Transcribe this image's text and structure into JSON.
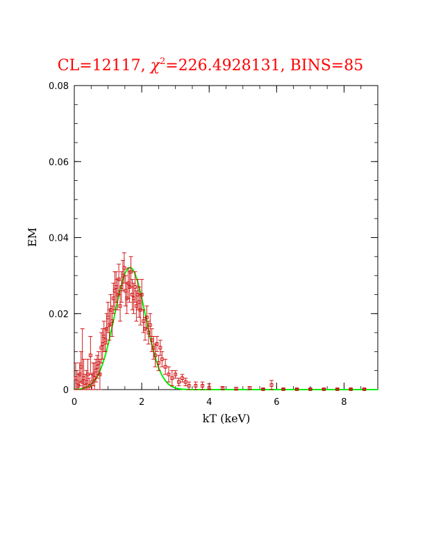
{
  "chart_data": {
    "type": "scatter",
    "title": {
      "prefix": "CL=12117, ",
      "chi": "χ",
      "chi_sup": "2",
      "suffix": "=226.4928131, BINS=85"
    },
    "xlabel": "kT (keV)",
    "ylabel": "EM",
    "xlim": [
      0,
      9
    ],
    "ylim": [
      0,
      0.08
    ],
    "x_ticks": [
      0,
      2,
      4,
      6,
      8
    ],
    "x_tick_labels": [
      "0",
      "2",
      "4",
      "6",
      "8"
    ],
    "y_ticks": [
      0,
      0.02,
      0.04,
      0.06,
      0.08
    ],
    "y_tick_labels": [
      "0",
      "0.02",
      "0.04",
      "0.06",
      "0.08"
    ],
    "x_minor_step": 0.5,
    "y_minor_step": 0.005,
    "grid": false,
    "colors": {
      "data": "#cc0000",
      "model": "#00ee00",
      "title": "#ff0000"
    },
    "series": [
      {
        "kind": "points-with-errorbars",
        "points": [
          {
            "x": 0.04,
            "y": 0.003,
            "e": 0.004
          },
          {
            "x": 0.08,
            "y": 0.002,
            "e": 0.003
          },
          {
            "x": 0.12,
            "y": 0.001,
            "e": 0.003
          },
          {
            "x": 0.16,
            "y": 0.004,
            "e": 0.003
          },
          {
            "x": 0.2,
            "y": 0.006,
            "e": 0.004
          },
          {
            "x": 0.24,
            "y": 0.002,
            "e": 0.014
          },
          {
            "x": 0.28,
            "y": 0.003,
            "e": 0.005
          },
          {
            "x": 0.32,
            "y": 0.001,
            "e": 0.003
          },
          {
            "x": 0.36,
            "y": 0.002,
            "e": 0.003
          },
          {
            "x": 0.4,
            "y": 0.004,
            "e": 0.004
          },
          {
            "x": 0.44,
            "y": 0.001,
            "e": 0.002
          },
          {
            "x": 0.48,
            "y": 0.009,
            "e": 0.005
          },
          {
            "x": 0.52,
            "y": 0.002,
            "e": 0.002
          },
          {
            "x": 0.56,
            "y": 0.004,
            "e": 0.003
          },
          {
            "x": 0.6,
            "y": 0.003,
            "e": 0.004
          },
          {
            "x": 0.64,
            "y": 0.005,
            "e": 0.003
          },
          {
            "x": 0.68,
            "y": 0.006,
            "e": 0.003
          },
          {
            "x": 0.72,
            "y": 0.007,
            "e": 0.003
          },
          {
            "x": 0.76,
            "y": 0.004,
            "e": 0.004
          },
          {
            "x": 0.8,
            "y": 0.011,
            "e": 0.004
          },
          {
            "x": 0.84,
            "y": 0.012,
            "e": 0.004
          },
          {
            "x": 0.88,
            "y": 0.014,
            "e": 0.004
          },
          {
            "x": 0.92,
            "y": 0.013,
            "e": 0.003
          },
          {
            "x": 0.96,
            "y": 0.016,
            "e": 0.004
          },
          {
            "x": 1.0,
            "y": 0.019,
            "e": 0.004
          },
          {
            "x": 1.04,
            "y": 0.017,
            "e": 0.004
          },
          {
            "x": 1.08,
            "y": 0.021,
            "e": 0.004
          },
          {
            "x": 1.12,
            "y": 0.018,
            "e": 0.004
          },
          {
            "x": 1.16,
            "y": 0.024,
            "e": 0.004
          },
          {
            "x": 1.2,
            "y": 0.026,
            "e": 0.005
          },
          {
            "x": 1.24,
            "y": 0.027,
            "e": 0.004
          },
          {
            "x": 1.28,
            "y": 0.025,
            "e": 0.004
          },
          {
            "x": 1.32,
            "y": 0.029,
            "e": 0.004
          },
          {
            "x": 1.36,
            "y": 0.022,
            "e": 0.004
          },
          {
            "x": 1.4,
            "y": 0.027,
            "e": 0.004
          },
          {
            "x": 1.44,
            "y": 0.03,
            "e": 0.004
          },
          {
            "x": 1.48,
            "y": 0.032,
            "e": 0.004
          },
          {
            "x": 1.52,
            "y": 0.026,
            "e": 0.004
          },
          {
            "x": 1.56,
            "y": 0.024,
            "e": 0.004
          },
          {
            "x": 1.6,
            "y": 0.028,
            "e": 0.004
          },
          {
            "x": 1.64,
            "y": 0.027,
            "e": 0.004
          },
          {
            "x": 1.68,
            "y": 0.031,
            "e": 0.004
          },
          {
            "x": 1.72,
            "y": 0.025,
            "e": 0.004
          },
          {
            "x": 1.76,
            "y": 0.024,
            "e": 0.004
          },
          {
            "x": 1.8,
            "y": 0.027,
            "e": 0.004
          },
          {
            "x": 1.84,
            "y": 0.022,
            "e": 0.004
          },
          {
            "x": 1.88,
            "y": 0.025,
            "e": 0.004
          },
          {
            "x": 1.92,
            "y": 0.023,
            "e": 0.004
          },
          {
            "x": 1.96,
            "y": 0.021,
            "e": 0.004
          },
          {
            "x": 2.0,
            "y": 0.025,
            "e": 0.004
          },
          {
            "x": 2.05,
            "y": 0.018,
            "e": 0.003
          },
          {
            "x": 2.1,
            "y": 0.016,
            "e": 0.003
          },
          {
            "x": 2.15,
            "y": 0.019,
            "e": 0.003
          },
          {
            "x": 2.2,
            "y": 0.015,
            "e": 0.003
          },
          {
            "x": 2.25,
            "y": 0.017,
            "e": 0.003
          },
          {
            "x": 2.3,
            "y": 0.013,
            "e": 0.003
          },
          {
            "x": 2.35,
            "y": 0.011,
            "e": 0.003
          },
          {
            "x": 2.4,
            "y": 0.009,
            "e": 0.003
          },
          {
            "x": 2.45,
            "y": 0.012,
            "e": 0.002
          },
          {
            "x": 2.5,
            "y": 0.007,
            "e": 0.002
          },
          {
            "x": 2.55,
            "y": 0.011,
            "e": 0.002
          },
          {
            "x": 2.6,
            "y": 0.008,
            "e": 0.002
          },
          {
            "x": 2.7,
            "y": 0.006,
            "e": 0.002
          },
          {
            "x": 2.8,
            "y": 0.004,
            "e": 0.002
          },
          {
            "x": 2.9,
            "y": 0.003,
            "e": 0.002
          },
          {
            "x": 3.0,
            "y": 0.004,
            "e": 0.001
          },
          {
            "x": 3.1,
            "y": 0.002,
            "e": 0.001
          },
          {
            "x": 3.2,
            "y": 0.003,
            "e": 0.001
          },
          {
            "x": 3.3,
            "y": 0.002,
            "e": 0.001
          },
          {
            "x": 3.4,
            "y": 0.001,
            "e": 0.001
          },
          {
            "x": 3.6,
            "y": 0.001,
            "e": 0.001
          },
          {
            "x": 3.8,
            "y": 0.001,
            "e": 0.001
          },
          {
            "x": 4.0,
            "y": 0.0005,
            "e": 0.001
          },
          {
            "x": 4.4,
            "y": 0.0003,
            "e": 0.0005
          },
          {
            "x": 4.8,
            "y": 0.0002,
            "e": 0.0004
          },
          {
            "x": 5.2,
            "y": 0.0004,
            "e": 0.0004
          },
          {
            "x": 5.6,
            "y": 0.0001,
            "e": 0.0002
          },
          {
            "x": 5.85,
            "y": 0.0012,
            "e": 0.0012
          },
          {
            "x": 6.2,
            "y": 0.0001,
            "e": 0.0002
          },
          {
            "x": 6.6,
            "y": 0.0001,
            "e": 0.0002
          },
          {
            "x": 7.0,
            "y": 0.0001,
            "e": 0.0002
          },
          {
            "x": 7.4,
            "y": 0.0001,
            "e": 0.0002
          },
          {
            "x": 7.8,
            "y": 0.0001,
            "e": 0.0002
          },
          {
            "x": 8.2,
            "y": 0.0001,
            "e": 0.0002
          },
          {
            "x": 8.6,
            "y": 0.0001,
            "e": 0.0002
          }
        ]
      },
      {
        "kind": "model-curve",
        "shape": "gaussian",
        "amplitude": 0.0321,
        "center": 1.65,
        "sigma": 0.46,
        "x_range": [
          0,
          9
        ]
      }
    ]
  }
}
